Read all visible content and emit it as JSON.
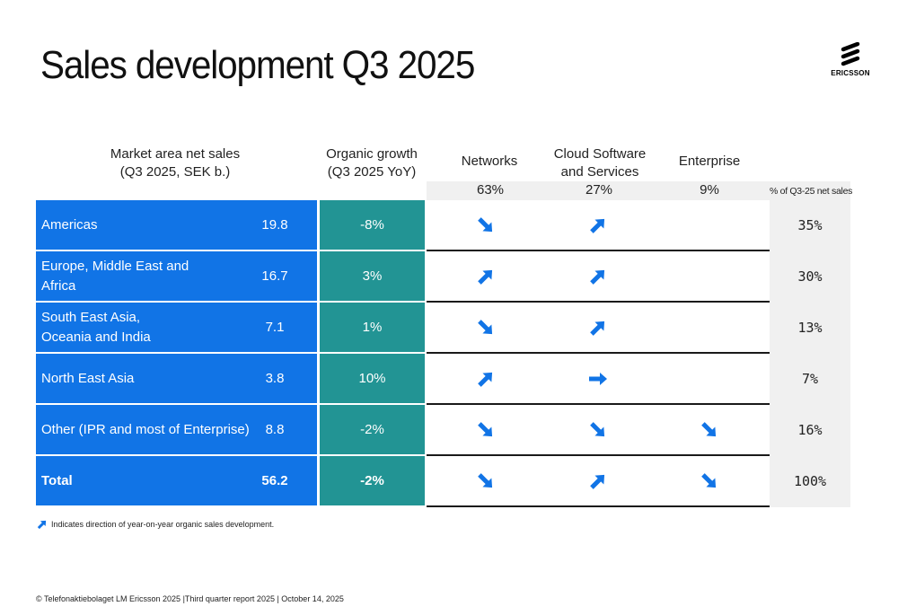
{
  "page": {
    "title": "Sales development Q3 2025",
    "logo_text": "ERICSSON"
  },
  "headers": {
    "market_area": [
      "Market area net sales",
      "(Q3 2025, SEK b.)"
    ],
    "organic_growth": [
      "Organic growth",
      "(Q3 2025 YoY)"
    ],
    "networks": "Networks",
    "cloud": [
      "Cloud Software",
      "and Services"
    ],
    "enterprise": "Enterprise"
  },
  "segment_shares": {
    "networks": "63%",
    "cloud": "27%",
    "enterprise": "9%",
    "label": "% of Q3-25 net sales"
  },
  "colors": {
    "area_blue": "#1174e6",
    "growth_teal": "#229494",
    "arrow_blue": "#1174e6",
    "share_gray": "#f0f0f0"
  },
  "rows": [
    {
      "area": [
        "Americas"
      ],
      "net_sales": "19.8",
      "growth": "-8%",
      "networks": "down",
      "cloud": "up",
      "enterprise": "",
      "share": "35%"
    },
    {
      "area": [
        "Europe, Middle East and",
        "Africa"
      ],
      "net_sales": "16.7",
      "growth": "3%",
      "networks": "up",
      "cloud": "up",
      "enterprise": "",
      "share": "30%"
    },
    {
      "area": [
        "South East Asia,",
        "Oceania and India"
      ],
      "net_sales": "7.1",
      "growth": "1%",
      "networks": "down",
      "cloud": "up",
      "enterprise": "",
      "share": "13%"
    },
    {
      "area": [
        "North East Asia"
      ],
      "net_sales": "3.8",
      "growth": "10%",
      "networks": "up",
      "cloud": "flat",
      "enterprise": "",
      "share": "7%"
    },
    {
      "area": [
        "Other (IPR and most of Enterprise)"
      ],
      "net_sales": "8.8",
      "growth": "-2%",
      "networks": "down",
      "cloud": "down",
      "enterprise": "down",
      "share": "16%"
    },
    {
      "area": [
        "Total"
      ],
      "net_sales": "56.2",
      "growth": "-2%",
      "networks": "down",
      "cloud": "up",
      "enterprise": "down",
      "share": "100%",
      "is_total": true
    }
  ],
  "legend": {
    "icon": "arrow-up-right-icon",
    "text": "Indicates direction of year-on-year organic sales development."
  },
  "footer": "© Telefonaktiebolaget LM Ericsson 2025  |Third quarter report 2025 | October 14, 2025"
}
